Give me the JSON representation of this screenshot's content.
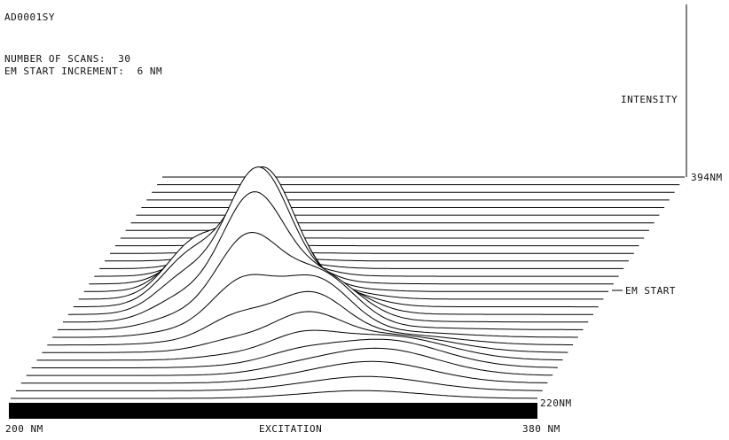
{
  "header": {
    "sample_id": "AD0001SY",
    "scans_line": "NUMBER OF SCANS:  30",
    "increment_line": "EM START INCREMENT:  6 NM"
  },
  "chart_data": {
    "type": "area",
    "title": "",
    "zlabel": "INTENSITY",
    "xlabel": "EXCITATION",
    "x_tick_labels": [
      "200 NM",
      "380 NM"
    ],
    "xlim": [
      200,
      380
    ],
    "x_units": "NM",
    "depth_label": "EM START",
    "depth_tick_labels": [
      "220NM",
      "394NM"
    ],
    "depth_range": [
      220,
      394
    ],
    "num_scans": 30,
    "em_start_increment_nm": 6,
    "peaks": [
      {
        "excitation_nm": 265,
        "em_start_nm": 286,
        "relative_intensity": 1.0,
        "width_nm": 11
      },
      {
        "excitation_nm": 290,
        "em_start_nm": 268,
        "relative_intensity": 0.45,
        "width_nm": 12
      },
      {
        "excitation_nm": 240,
        "em_start_nm": 298,
        "relative_intensity": 0.35,
        "width_nm": 10
      },
      {
        "excitation_nm": 320,
        "em_start_nm": 240,
        "relative_intensity": 0.3,
        "width_nm": 20
      }
    ],
    "line_color": "#000000",
    "grid": false
  }
}
